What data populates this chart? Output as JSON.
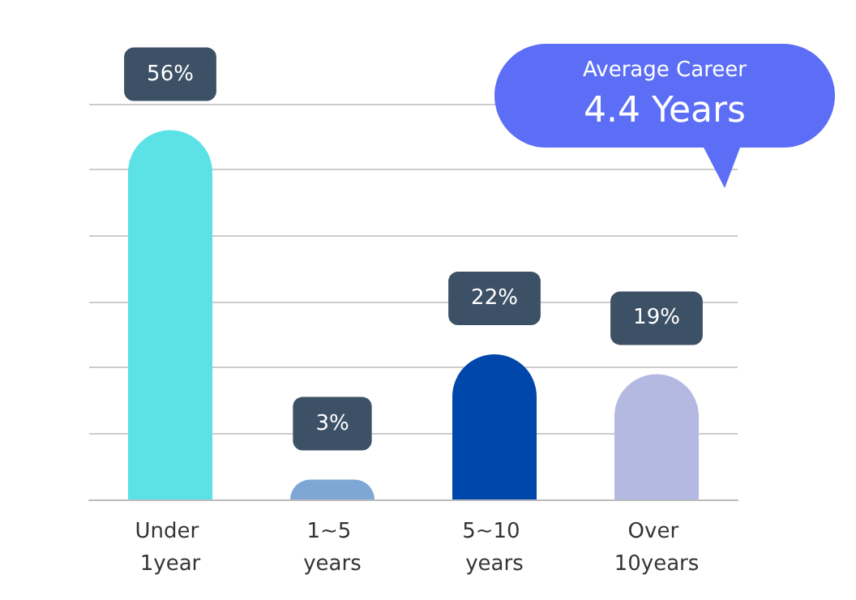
{
  "chart_data": {
    "type": "bar",
    "categories": [
      "Under 1year",
      "1~5 years",
      "5~10 years",
      "Over 10years"
    ],
    "values": [
      56,
      3,
      22,
      19
    ],
    "value_labels": [
      "56%",
      "3%",
      "22%",
      "19%"
    ],
    "colors": [
      "#5ce1e6",
      "#7fa7d6",
      "#0047ab",
      "#b3b9e0"
    ],
    "tick_labels": "x",
    "grid": "y",
    "annotations": [
      "Average Career",
      "4.4 Years"
    ]
  }
}
